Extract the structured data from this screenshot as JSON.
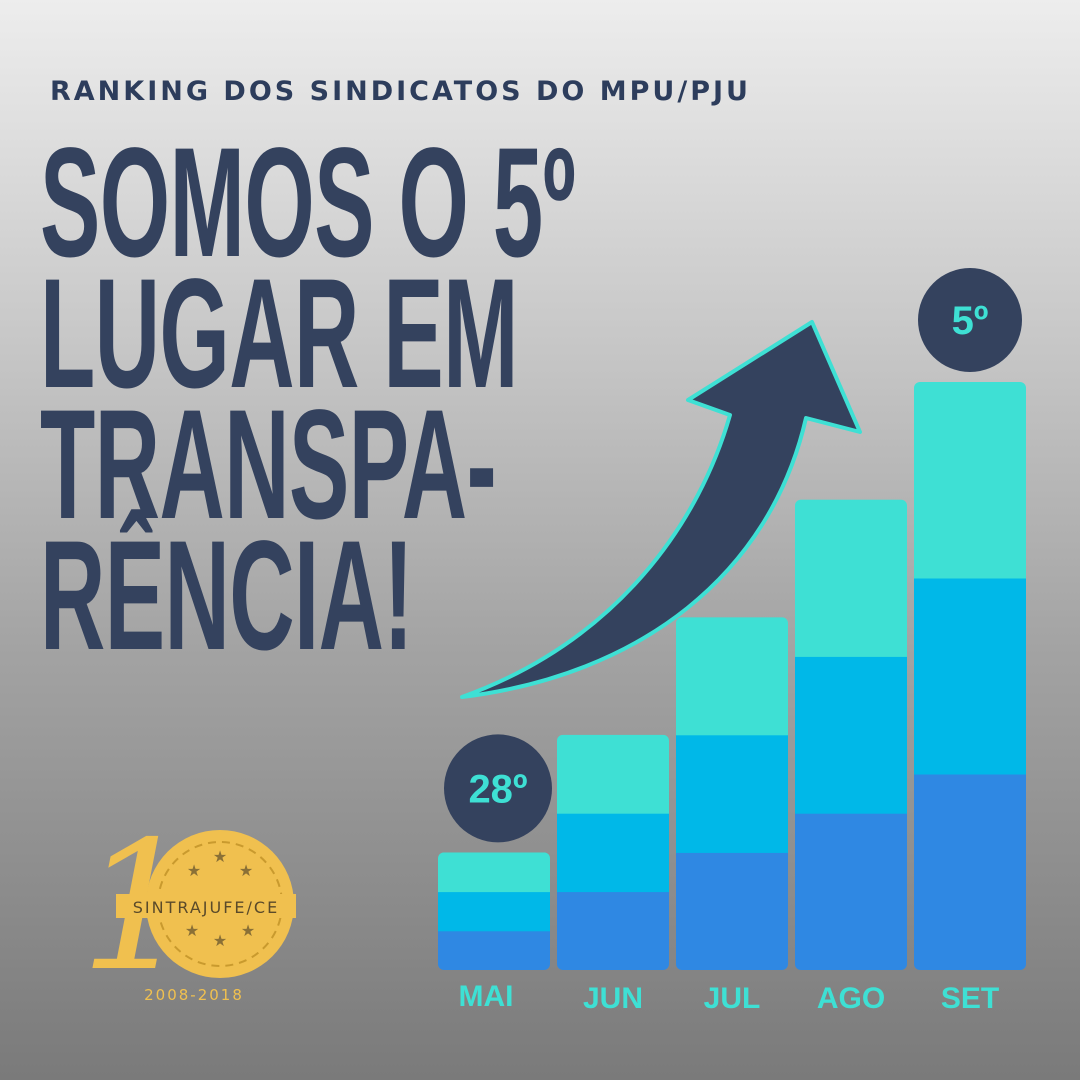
{
  "header": {
    "kicker": "RANKING DOS SINDICATOS DO MPU/PJU",
    "headline_lines": [
      "SOMOS O 5º",
      "LUGAR EM",
      "TRANSPA-",
      "RÊNCIA!"
    ]
  },
  "chart_data": {
    "type": "bar",
    "stacked": true,
    "categories": [
      "MAI",
      "JUN",
      "JUL",
      "AGO",
      "SET"
    ],
    "series": [
      {
        "values": [
          1,
          2,
          3,
          4,
          5
        ]
      },
      {
        "values": [
          1,
          2,
          3,
          4,
          5
        ]
      },
      {
        "values": [
          1,
          2,
          3,
          4,
          5
        ]
      }
    ],
    "rank_labels": [
      {
        "category": "MAI",
        "text": "28º"
      },
      {
        "category": "SET",
        "text": "5º"
      }
    ],
    "ymax": 15,
    "trend_arrow": true,
    "colors": {
      "segments": [
        "#2f88e3",
        "#00b8e8",
        "#3ee0d4"
      ],
      "arrow_fill": "#34425e",
      "arrow_outline": "#3ee0d4",
      "rank_circle": "#34425e",
      "rank_text": "#3ee0d4",
      "month_label": "#3ee0d4"
    }
  },
  "logo": {
    "number_digit": "1",
    "name": "SINTRAJUFE/CE",
    "years": "2008-2018",
    "color": "#f0c04f"
  }
}
